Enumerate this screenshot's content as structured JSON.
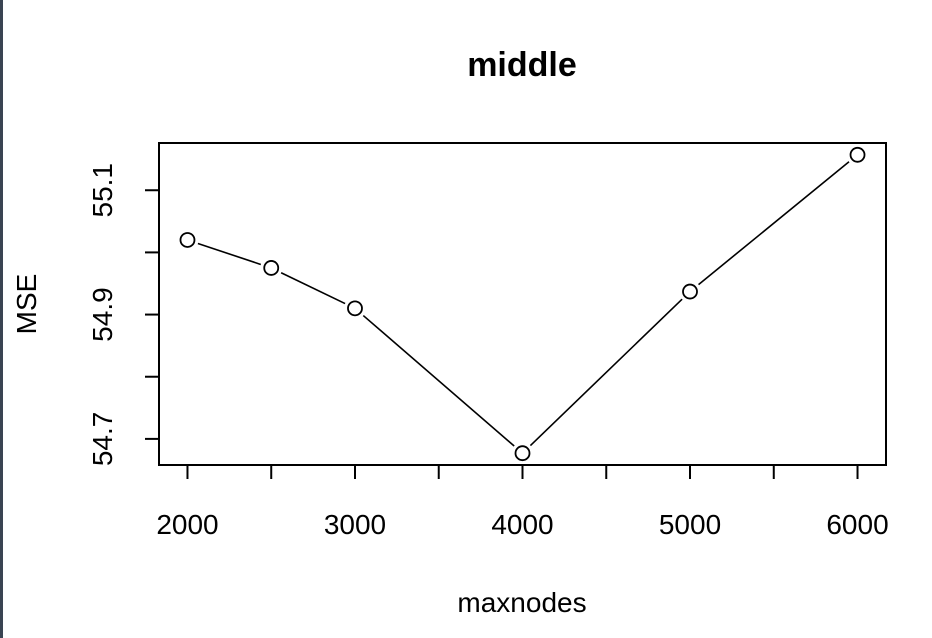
{
  "chart_data": {
    "type": "line",
    "title": "middle",
    "xlabel": "maxnodes",
    "ylabel": "MSE",
    "x": [
      2000,
      2500,
      3000,
      4000,
      5000,
      6000
    ],
    "y": [
      55.02,
      54.975,
      54.91,
      54.677,
      54.937,
      55.157
    ],
    "xlim": [
      1830,
      6170
    ],
    "ylim": [
      54.658,
      55.176
    ],
    "xticks": [
      2000,
      2500,
      3000,
      3500,
      4000,
      4500,
      5000,
      5500,
      6000
    ],
    "xtick_labels": [
      "2000",
      "",
      "3000",
      "",
      "4000",
      "",
      "5000",
      "",
      "6000"
    ],
    "yticks": [
      54.7,
      54.8,
      54.9,
      55.0,
      55.1
    ],
    "ytick_labels": [
      "54.7",
      "",
      "54.9",
      "",
      "55.1"
    ],
    "marker": "open-circle",
    "line_color": "#000000",
    "grid": false
  }
}
